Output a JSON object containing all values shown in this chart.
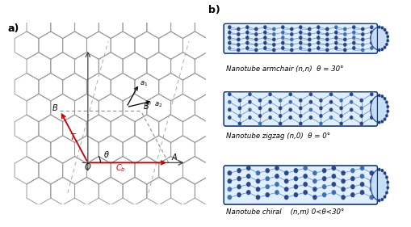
{
  "fig_width": 5.1,
  "fig_height": 2.81,
  "dpi": 100,
  "bg_color": "#ffffff",
  "label_a": "a)",
  "label_b": "b)",
  "hex_color": "#999999",
  "hex_linewidth": 0.7,
  "arrow_color": "#cc0000",
  "axis_color": "#444444",
  "dashed_color": "#888888",
  "label_armchair": "Nanotube armchair (n,n)  θ = 30°",
  "label_zigzag": "Nanotube zigzag (n,0)  θ = 0°",
  "label_chiral": "Nanotube chiral    (n,m) 0<θ<30°",
  "atom_color_dark": "#1a3a7a",
  "atom_color_mid": "#3366aa",
  "atom_color_light": "#aaccee",
  "bond_color": "#2255aa",
  "text_font_size": 6.2,
  "panel_label_size": 9
}
